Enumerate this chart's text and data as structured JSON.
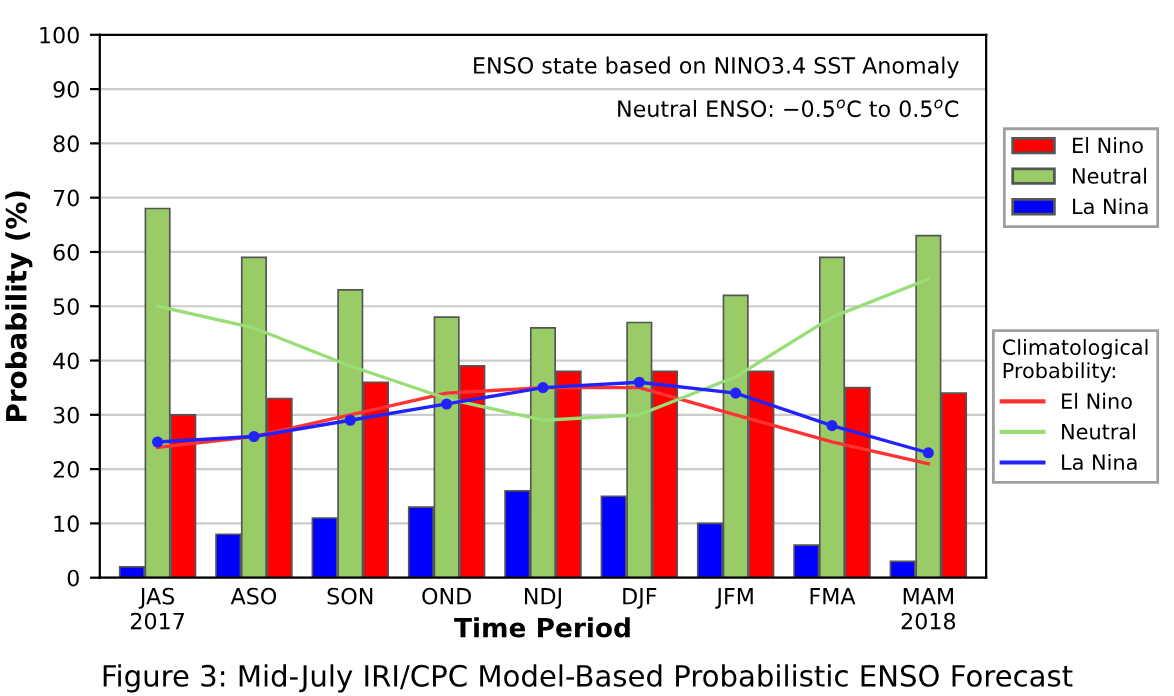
{
  "chart_data": {
    "type": "bar",
    "ylabel": "Probability (%)",
    "xlabel": "Time Period",
    "categories": [
      "JAS\n2017",
      "ASO",
      "SON",
      "OND",
      "NDJ",
      "DJF",
      "JFM",
      "FMA",
      "MAM\n2018"
    ],
    "series": [
      {
        "name": "La Nina",
        "color": "#0000ff",
        "values": [
          2,
          8,
          11,
          13,
          16,
          15,
          10,
          6,
          3
        ]
      },
      {
        "name": "Neutral",
        "color": "#99cc66",
        "values": [
          68,
          59,
          53,
          48,
          46,
          47,
          52,
          59,
          63
        ]
      },
      {
        "name": "El Nino",
        "color": "#ff0000",
        "values": [
          30,
          33,
          36,
          39,
          38,
          38,
          38,
          35,
          34
        ]
      },
      {
        "name": "El Nino",
        "type": "line",
        "color": "#ff3333",
        "values": [
          24,
          26,
          30,
          34,
          35,
          35,
          30,
          25,
          21
        ]
      },
      {
        "name": "Neutral",
        "type": "line",
        "color": "#99dd77",
        "values": [
          50,
          46,
          39,
          33,
          29,
          30,
          37,
          48,
          55
        ]
      },
      {
        "name": "La Nina",
        "type": "line",
        "color": "#2222ff",
        "marker": "circle",
        "values": [
          25,
          26,
          29,
          32,
          35,
          36,
          34,
          28,
          23
        ]
      }
    ],
    "legend_title": "Climatological\nProbability:",
    "legend": "right",
    "ylim": [
      0,
      100
    ],
    "yticks": [
      0,
      10,
      20,
      30,
      40,
      50,
      60,
      70,
      80,
      90,
      100
    ],
    "grid": "y",
    "annotations": [
      "ENSO state based on NINO3.4 SST Anomaly",
      "Neutral ENSO: −0.5$^{o}$C to 0.5$^{o}$C",
      "Figure 3: Mid-July IRI/CPC Model-Based Probabilistic ENSO Forecast"
    ]
  }
}
